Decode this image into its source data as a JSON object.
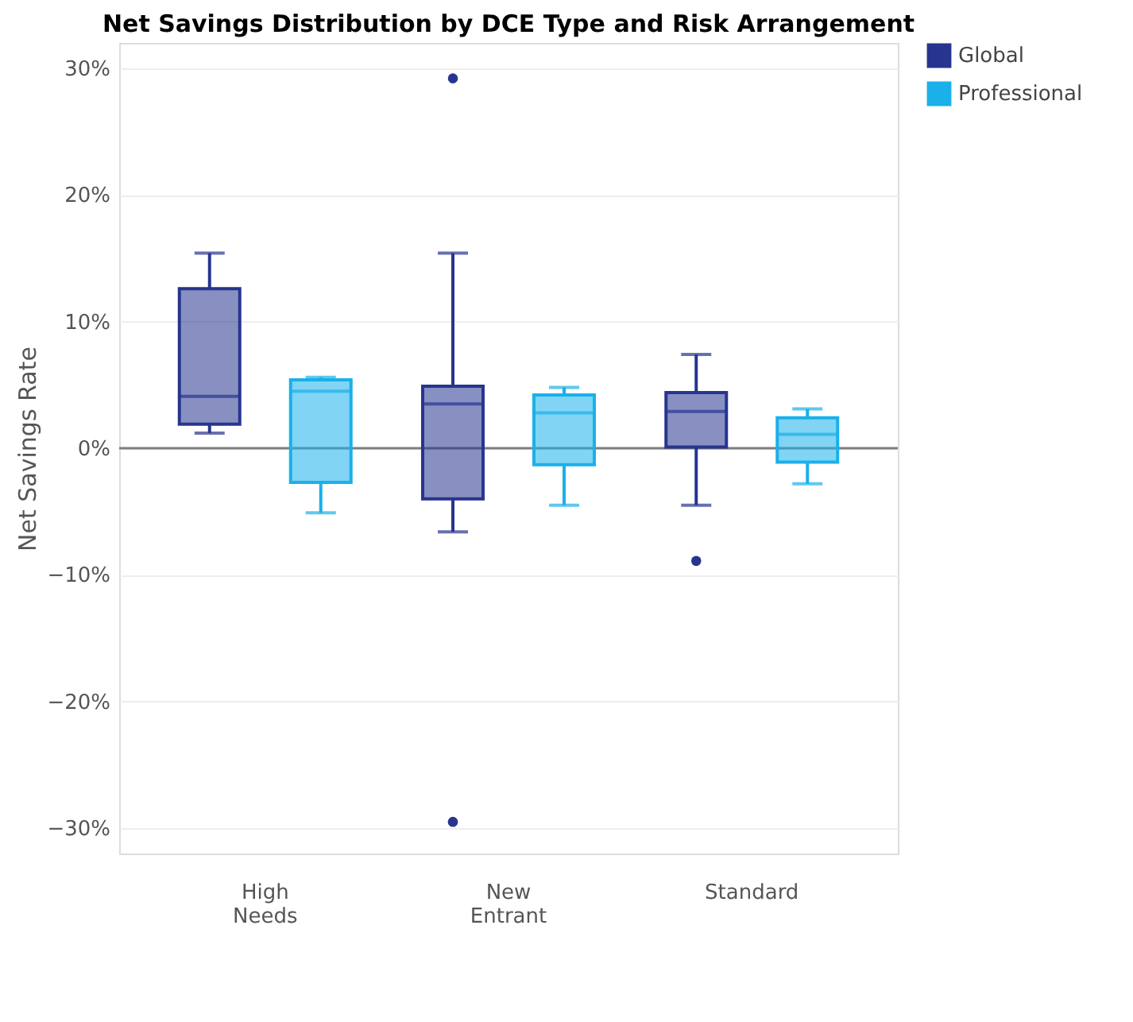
{
  "chart_data": {
    "type": "box",
    "title": "Net Savings Distribution by DCE Type and Risk Arrangement",
    "ylabel": "Net Savings Rate",
    "categories": [
      "High Needs",
      "New Entrant",
      "Standard"
    ],
    "series": [
      {
        "name": "Global",
        "color": "#27358f",
        "boxes": [
          {
            "low": 1.2,
            "q1": 1.9,
            "median": 4.1,
            "q3": 12.6,
            "high": 15.4
          },
          {
            "low": -6.6,
            "q1": -4.0,
            "median": 3.5,
            "q3": 4.9,
            "high": 15.4,
            "outliers": [
              29.2,
              -29.5
            ]
          },
          {
            "low": -4.5,
            "q1": 0.1,
            "median": 2.9,
            "q3": 4.4,
            "high": 7.4,
            "outliers": [
              -8.9
            ]
          }
        ]
      },
      {
        "name": "Professional",
        "color": "#1ab0ea",
        "boxes": [
          {
            "low": -5.1,
            "q1": -2.7,
            "median": 4.5,
            "q3": 5.4,
            "high": 5.6
          },
          {
            "low": -4.5,
            "q1": -1.3,
            "median": 2.8,
            "q3": 4.2,
            "high": 4.8
          },
          {
            "low": -2.8,
            "q1": -1.1,
            "median": 1.1,
            "q3": 2.4,
            "high": 3.1
          }
        ]
      }
    ],
    "ylim": [
      -32,
      32
    ],
    "yticks": [
      {
        "value": -30,
        "label": "−30%"
      },
      {
        "value": -20,
        "label": "−20%"
      },
      {
        "value": -10,
        "label": "−10%"
      },
      {
        "value": 0,
        "label": "0%"
      },
      {
        "value": 10,
        "label": "10%"
      },
      {
        "value": 20,
        "label": "20%"
      },
      {
        "value": 30,
        "label": "30%"
      }
    ],
    "ref_lines": [
      {
        "axis": "y",
        "value": 0,
        "color": "#7f7f7f"
      }
    ],
    "grid": "y",
    "legend": "top right"
  }
}
